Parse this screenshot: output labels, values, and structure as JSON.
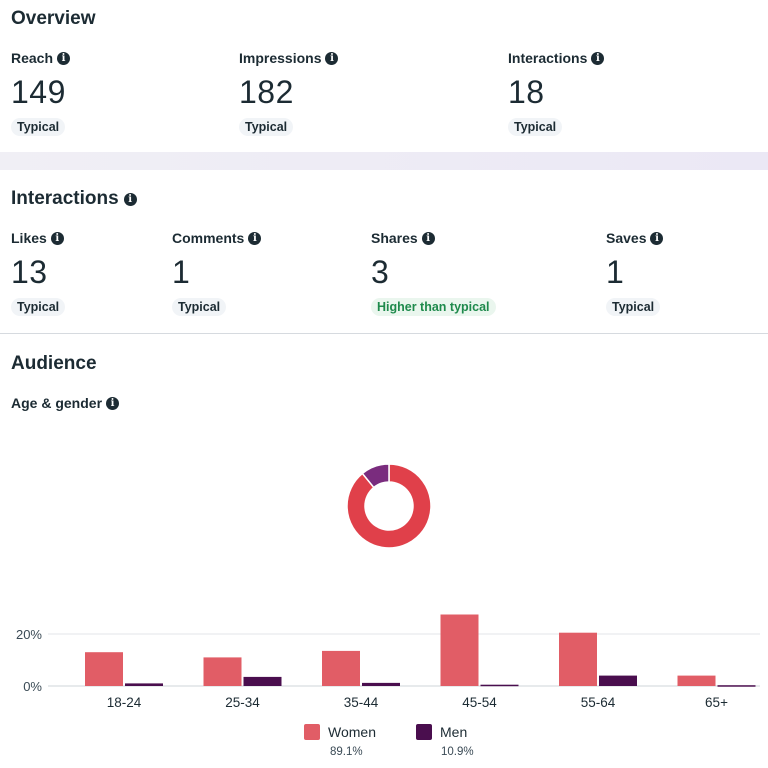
{
  "overview": {
    "title": "Overview",
    "metrics": [
      {
        "label": "Reach",
        "value": "149",
        "badge": "Typical"
      },
      {
        "label": "Impressions",
        "value": "182",
        "badge": "Typical"
      },
      {
        "label": "Interactions",
        "value": "18",
        "badge": "Typical"
      }
    ]
  },
  "interactions": {
    "title": "Interactions",
    "metrics": [
      {
        "label": "Likes",
        "value": "13",
        "badge": "Typical"
      },
      {
        "label": "Comments",
        "value": "1",
        "badge": "Typical"
      },
      {
        "label": "Shares",
        "value": "3",
        "badge": "Higher than typical"
      },
      {
        "label": "Saves",
        "value": "1",
        "badge": "Typical"
      }
    ]
  },
  "audience": {
    "title": "Audience",
    "subtitle": "Age & gender",
    "legend": [
      {
        "name": "Women",
        "pct": "89.1%",
        "color": "#e15d66"
      },
      {
        "name": "Men",
        "pct": "10.9%",
        "color": "#4a0e4e"
      }
    ]
  },
  "colors": {
    "women": "#e15d66",
    "men": "#4a0e4e",
    "donut_women": "#e0404a",
    "donut_men": "#7a2c7e",
    "higher": "#1e8a4c"
  },
  "chart_data": [
    {
      "type": "pie",
      "variant": "donut",
      "categories": [
        "Women",
        "Men"
      ],
      "values": [
        89.1,
        10.9
      ]
    },
    {
      "type": "bar",
      "categories": [
        "18-24",
        "25-34",
        "35-44",
        "45-54",
        "55-64",
        "65+"
      ],
      "series": [
        {
          "name": "Women",
          "values": [
            13,
            11,
            13.5,
            27.5,
            20.5,
            4
          ]
        },
        {
          "name": "Men",
          "values": [
            1,
            3.5,
            1.2,
            0.5,
            4,
            0.3
          ]
        }
      ],
      "ytick_labels": [
        "0%",
        "20%"
      ],
      "ylim": [
        0,
        30
      ],
      "grid": true
    }
  ]
}
